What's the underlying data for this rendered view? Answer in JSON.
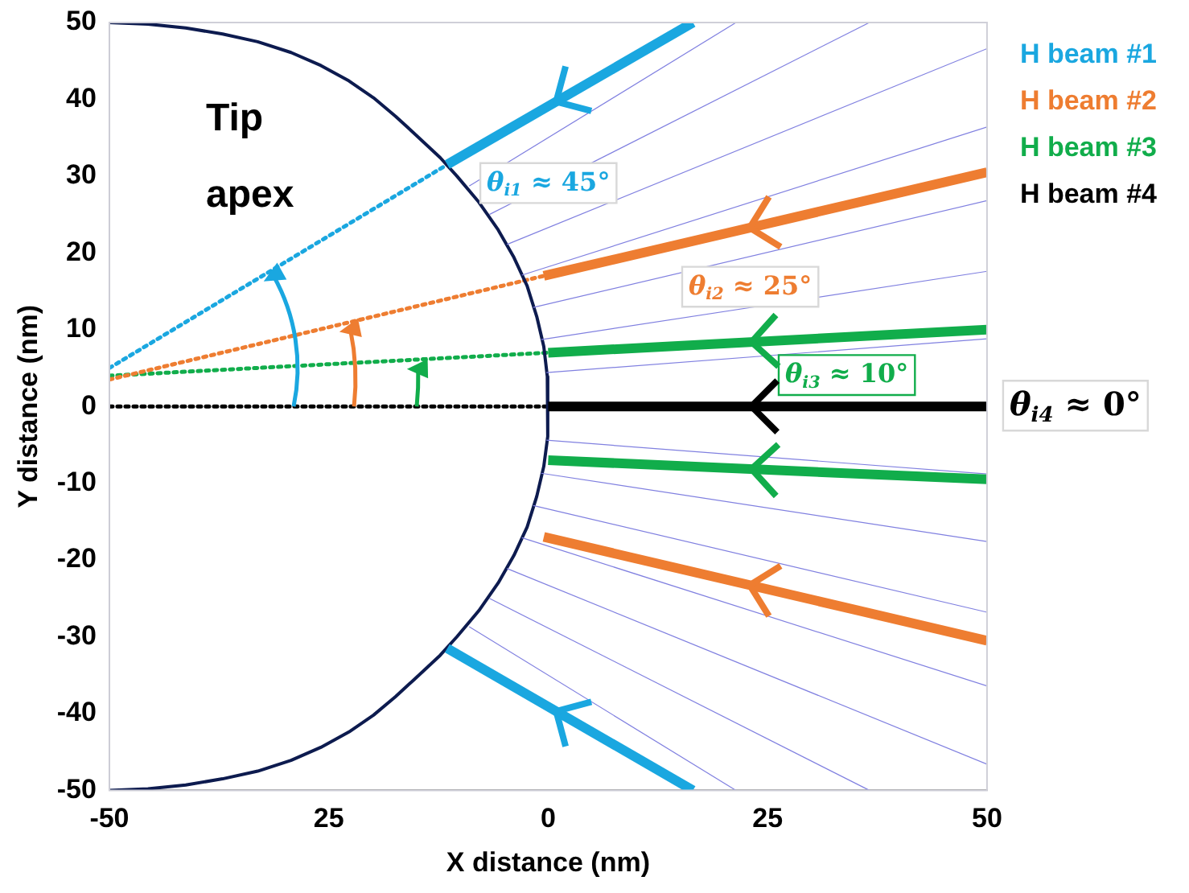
{
  "chart_data": {
    "type": "line",
    "xlabel": "X distance (nm)",
    "ylabel": "Y distance (nm)",
    "xlim": [
      -50,
      50
    ],
    "xticks": [
      -50,
      {
        "value": -25,
        "label": "25"
      },
      0,
      25,
      50
    ],
    "ylim": [
      -50,
      50
    ],
    "yticks": [
      -50,
      -40,
      -30,
      -20,
      -10,
      0,
      10,
      20,
      30,
      40,
      50
    ],
    "grid": false,
    "legend": "right",
    "marker": "none",
    "series": [
      {
        "color": "#8080e0",
        "x": [
          -0.2,
          50
        ],
        "values": [
          4.4,
          8.8
        ]
      },
      {
        "color": "#8080e0",
        "x": [
          -0.8,
          50
        ],
        "values": [
          8.7,
          17.6
        ]
      },
      {
        "color": "#8080e0",
        "x": [
          -1.7,
          50
        ],
        "values": [
          12.9,
          26.8
        ]
      },
      {
        "color": "#8080e0",
        "x": [
          -3,
          50
        ],
        "values": [
          17.1,
          36.4
        ]
      },
      {
        "color": "#8080e0",
        "x": [
          -4.7,
          50
        ],
        "values": [
          21.1,
          46.6
        ]
      },
      {
        "color": "#8080e0",
        "x": [
          -6.7,
          36.6
        ],
        "values": [
          25,
          50
        ]
      },
      {
        "color": "#8080e0",
        "x": [
          -9,
          21.4
        ],
        "values": [
          28.7,
          50
        ]
      },
      {
        "color": "#8080e0",
        "x": [
          -0.2,
          50
        ],
        "values": [
          -4.4,
          -8.8
        ]
      },
      {
        "color": "#8080e0",
        "x": [
          -0.8,
          50
        ],
        "values": [
          -8.7,
          -17.6
        ]
      },
      {
        "color": "#8080e0",
        "x": [
          -1.7,
          50
        ],
        "values": [
          -12.9,
          -26.8
        ]
      },
      {
        "color": "#8080e0",
        "x": [
          -3,
          50
        ],
        "values": [
          -17.1,
          -36.4
        ]
      },
      {
        "color": "#8080e0",
        "x": [
          -4.7,
          50
        ],
        "values": [
          -21.1,
          -46.6
        ]
      },
      {
        "color": "#8080e0",
        "x": [
          -6.7,
          36.6
        ],
        "values": [
          -25,
          -50
        ]
      },
      {
        "color": "#8080e0",
        "x": [
          -9,
          21.4
        ],
        "values": [
          -28.7,
          -50
        ]
      },
      {
        "color": "#0d1b4f",
        "x": [
          -50,
          -45.6,
          -41.3,
          -37.1,
          -33.1,
          -29.3,
          -25.9,
          -22.7,
          -19.9,
          -17.4,
          -15.4,
          -13.7,
          -12.3,
          -10.4,
          -7.9,
          -5.7,
          -3.9,
          -2.4,
          -1.3,
          -0.5,
          -0.1,
          0,
          -0.1,
          -0.5,
          -1.3,
          -2.4,
          -3.9,
          -5.7,
          -7.9,
          -10.4,
          -12.3,
          -13.7,
          -15.4,
          -17.4,
          -19.9,
          -22.7,
          -25.9,
          -29.3,
          -33.1,
          -37.1,
          -41.3,
          -45.6,
          -50
        ],
        "values": [
          50,
          49.8,
          49.3,
          48.5,
          47.5,
          46.1,
          44.4,
          42.4,
          40.2,
          37.8,
          35.7,
          33.9,
          32.4,
          30,
          26.6,
          23,
          19.4,
          15.7,
          11.7,
          7.8,
          3.9,
          0,
          -3.9,
          -7.8,
          -11.7,
          -15.7,
          -19.4,
          -23,
          -26.6,
          -30,
          -32.4,
          -33.9,
          -35.7,
          -37.8,
          -40.2,
          -42.4,
          -44.4,
          -46.1,
          -47.5,
          -48.5,
          -49.3,
          -49.8,
          -50
        ]
      },
      {
        "color": "#1aa7e0",
        "line_style": "dotted",
        "x": [
          -50,
          -11.5
        ],
        "values": [
          5,
          31.5
        ]
      },
      {
        "color": "#ee7d31",
        "line_style": "dotted",
        "x": [
          -50,
          -0.5
        ],
        "values": [
          3.5,
          17
        ]
      },
      {
        "color": "#11ad4b",
        "line_style": "dotted",
        "x": [
          -50,
          0
        ],
        "values": [
          4,
          7
        ]
      },
      {
        "color": "#000000",
        "line_style": "dotted",
        "x": [
          -50,
          0
        ],
        "values": [
          0,
          0
        ]
      },
      {
        "name": "H beam #1",
        "color": "#1aa7e0",
        "x": [
          16.5,
          -11.5
        ],
        "values": [
          50,
          31.5
        ]
      },
      {
        "color": "#1aa7e0",
        "x": [
          16.5,
          -11.5
        ],
        "values": [
          -50,
          -31.5
        ]
      },
      {
        "name": "H beam #2",
        "color": "#ee7d31",
        "x": [
          50,
          -0.5
        ],
        "values": [
          30.5,
          17
        ]
      },
      {
        "color": "#ee7d31",
        "x": [
          50,
          -0.5
        ],
        "values": [
          -30.5,
          -17
        ]
      },
      {
        "name": "H beam #3",
        "color": "#11ad4b",
        "x": [
          50,
          0
        ],
        "values": [
          10,
          7
        ]
      },
      {
        "color": "#11ad4b",
        "x": [
          50,
          0
        ],
        "values": [
          -9.5,
          -7
        ]
      },
      {
        "name": "H beam #4",
        "color": "#000000",
        "x": [
          50,
          0
        ],
        "values": [
          0,
          0
        ]
      }
    ],
    "annotations": [
      "Tip apex",
      "θ$_{i1}$ ≈ 45°",
      "θ$_{i2}$ ≈ 25°",
      "θ$_{i3}$ ≈ 10°",
      "θ$_{i4}$ ≈ 0°"
    ]
  }
}
